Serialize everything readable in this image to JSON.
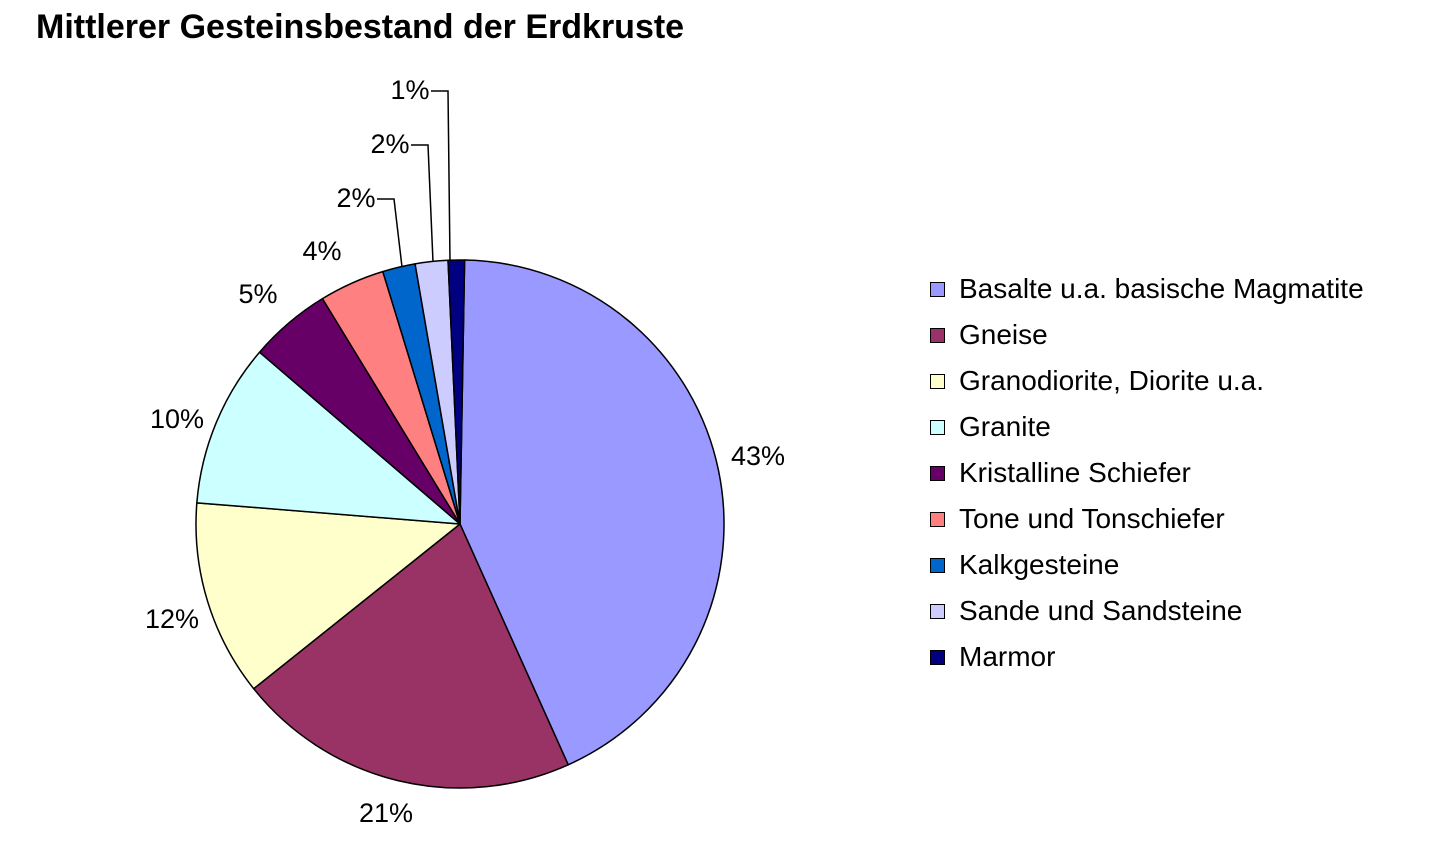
{
  "chart_data": {
    "type": "pie",
    "title": "Mittlerer Gesteinsbestand der Erdkruste",
    "legend_position": "right",
    "slices": [
      {
        "name": "Basalte u.a. basische Magmatite",
        "value": 43,
        "label": "43%",
        "color": "#9999ff"
      },
      {
        "name": "Gneise",
        "value": 21,
        "label": "21%",
        "color": "#993366"
      },
      {
        "name": "Granodiorite, Diorite u.a.",
        "value": 12,
        "label": "12%",
        "color": "#ffffcc"
      },
      {
        "name": "Granite",
        "value": 10,
        "label": "10%",
        "color": "#ccffff"
      },
      {
        "name": "Kristalline Schiefer",
        "value": 5,
        "label": "5%",
        "color": "#660066"
      },
      {
        "name": "Tone und Tonschiefer",
        "value": 4,
        "label": "4%",
        "color": "#ff8080"
      },
      {
        "name": "Kalkgesteine",
        "value": 2,
        "label": "2%",
        "color": "#0066cc"
      },
      {
        "name": "Sande und Sandsteine",
        "value": 2,
        "label": "2%",
        "color": "#ccccff"
      },
      {
        "name": "Marmor",
        "value": 1,
        "label": "1%",
        "color": "#000080"
      }
    ]
  }
}
